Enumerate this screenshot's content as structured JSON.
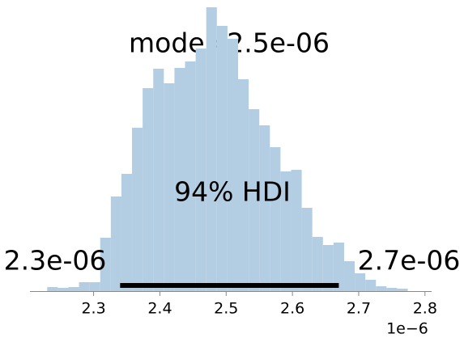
{
  "chart_data": {
    "type": "histogram",
    "bins": [
      2.23,
      2.246,
      2.262,
      2.278,
      2.294,
      2.31,
      2.326,
      2.342,
      2.358,
      2.374,
      2.39,
      2.406,
      2.422,
      2.438,
      2.454,
      2.47,
      2.486,
      2.502,
      2.518,
      2.534,
      2.55,
      2.566,
      2.582,
      2.598,
      2.614,
      2.63,
      2.646,
      2.662,
      2.678,
      2.694,
      2.71,
      2.726,
      2.742,
      2.758,
      2.774
    ],
    "values": [
      5,
      4,
      5,
      11,
      11,
      66,
      117,
      145,
      202,
      251,
      275,
      257,
      276,
      284,
      300,
      351,
      328,
      312,
      262,
      225,
      205,
      178,
      148,
      150,
      103,
      67,
      57,
      60,
      37,
      22,
      14,
      6,
      4,
      3
    ],
    "color": "#b3cde3",
    "xlim": [
      2.204,
      2.81
    ],
    "ylim": [
      0,
      351
    ],
    "xticks": [
      2.3,
      2.4,
      2.5,
      2.6,
      2.7,
      2.8
    ],
    "x_offset_label": "1e−6",
    "mode_label": "mode=2.5e-06",
    "hdi": {
      "label": "94% HDI",
      "low": 2.34,
      "high": 2.67,
      "low_label": "2.3e-06",
      "high_label": "2.7e-06",
      "color": "#000000"
    }
  }
}
